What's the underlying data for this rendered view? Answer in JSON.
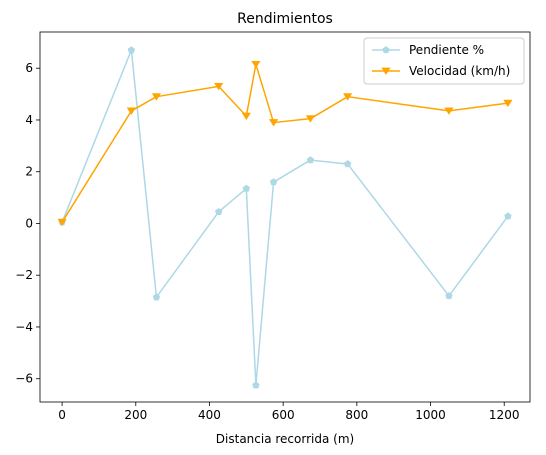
{
  "chart_data": {
    "type": "line",
    "title": "Rendimientos",
    "xlabel": "Distancia recorrida (m)",
    "ylabel": "",
    "xlim": [
      -60,
      1270
    ],
    "ylim": [
      -6.9,
      7.4
    ],
    "xticks": [
      0,
      200,
      400,
      600,
      800,
      1000,
      1200
    ],
    "yticks": [
      -6,
      -4,
      -2,
      0,
      2,
      4,
      6
    ],
    "grid": false,
    "legend_position": "upper right",
    "series": [
      {
        "name": "Pendiente %",
        "color": "#add8e6",
        "marker": "pentagon",
        "x": [
          0,
          188,
          256,
          425,
          500,
          526,
          574,
          674,
          775,
          1050,
          1210
        ],
        "y": [
          0.05,
          6.7,
          -2.85,
          0.45,
          1.35,
          -6.25,
          1.6,
          2.45,
          2.3,
          -2.8,
          0.28
        ]
      },
      {
        "name": "Velocidad (km/h)",
        "color": "#ffa500",
        "marker": "triangle-down",
        "x": [
          0,
          188,
          256,
          425,
          500,
          526,
          574,
          674,
          775,
          1050,
          1210
        ],
        "y": [
          0.05,
          4.35,
          4.9,
          5.3,
          4.15,
          6.15,
          3.9,
          4.05,
          4.9,
          4.35,
          4.65
        ]
      }
    ]
  }
}
